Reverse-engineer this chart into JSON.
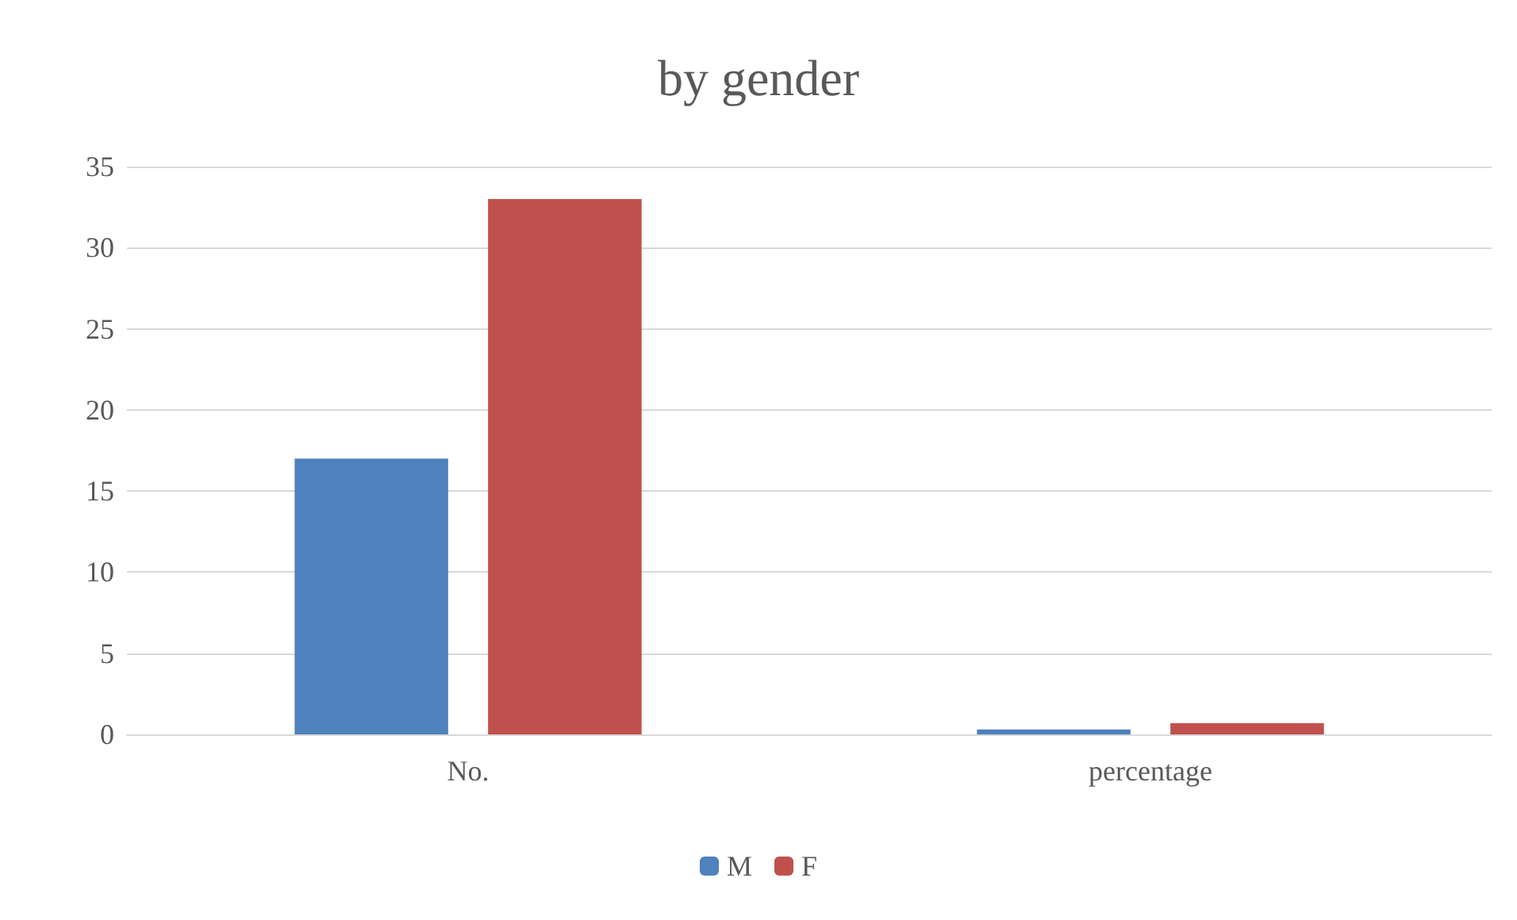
{
  "chart_data": {
    "type": "bar",
    "title": "by gender",
    "categories": [
      "No.",
      "percentage"
    ],
    "series": [
      {
        "name": "M",
        "color": "#4f81bd",
        "values": [
          17,
          0.3
        ]
      },
      {
        "name": "F",
        "color": "#c0504d",
        "values": [
          33,
          0.7
        ]
      }
    ],
    "ylim": [
      0,
      35
    ],
    "yticks": [
      0,
      5,
      10,
      15,
      20,
      25,
      30,
      35
    ],
    "grid": "y",
    "legend": "bottom"
  }
}
